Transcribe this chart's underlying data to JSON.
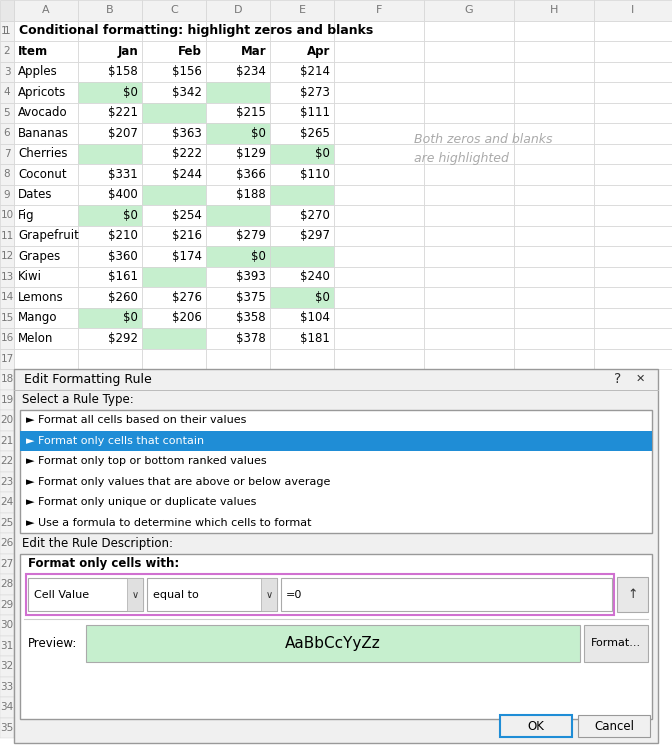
{
  "title": "Conditional formatting: highlight zeros and blanks",
  "rows": [
    [
      "Apples",
      "$158",
      "$156",
      "$234",
      "$214"
    ],
    [
      "Apricots",
      "$0",
      "$342",
      "",
      "$273"
    ],
    [
      "Avocado",
      "$221",
      "",
      "$215",
      "$111"
    ],
    [
      "Bananas",
      "$207",
      "$363",
      "$0",
      "$265"
    ],
    [
      "Cherries",
      "",
      "$222",
      "$129",
      "$0"
    ],
    [
      "Coconut",
      "$331",
      "$244",
      "$366",
      "$110"
    ],
    [
      "Dates",
      "$400",
      "",
      "$188",
      ""
    ],
    [
      "Fig",
      "$0",
      "$254",
      "",
      "$270"
    ],
    [
      "Grapefruit",
      "$210",
      "$216",
      "$279",
      "$297"
    ],
    [
      "Grapes",
      "$360",
      "$174",
      "$0",
      ""
    ],
    [
      "Kiwi",
      "$161",
      "",
      "$393",
      "$240"
    ],
    [
      "Lemons",
      "$260",
      "$276",
      "$375",
      "$0"
    ],
    [
      "Mango",
      "$0",
      "$206",
      "$358",
      "$104"
    ],
    [
      "Melon",
      "$292",
      "",
      "$378",
      "$181"
    ]
  ],
  "highlight_color": "#c6efce",
  "normal_bg": "#ffffff",
  "grid_color": "#d4d4d4",
  "row_num_bg": "#f2f2f2",
  "col_letter_bg": "#f2f2f2",
  "row_number_color": "#777777",
  "col_letter_color": "#777777",
  "annotation_text": "Both zeros and blanks\nare highlighted",
  "annotation_color": "#aaaaaa",
  "dialog_bg": "#f0f0f0",
  "dialog_border": "#999999",
  "dialog_title": "Edit Formatting Rule",
  "select_rule_label": "Select a Rule Type:",
  "rule_options": [
    "► Format all cells based on their values",
    "► Format only cells that contain",
    "► Format only top or bottom ranked values",
    "► Format only values that are above or below average",
    "► Format only unique or duplicate values",
    "► Use a formula to determine which cells to format"
  ],
  "selected_rule_idx": 1,
  "selected_rule_bg": "#1f8dd6",
  "selected_rule_text": "#ffffff",
  "rule_desc_label": "Edit the Rule Description:",
  "format_cells_label": "Format only cells with:",
  "dropdown1": "Cell Value",
  "dropdown2": "equal to",
  "formula_text": "=0",
  "preview_text": "AaBbCcYyZz",
  "ok_text": "OK",
  "cancel_text": "Cancel",
  "format_btn_text": "Format...",
  "pink_border": "#d070d0",
  "ok_btn_border": "#1f8dd6",
  "listbox_bg": "#ffffff",
  "listbox_border": "#999999",
  "descbox_bg": "#ffffff",
  "descbox_border": "#999999"
}
